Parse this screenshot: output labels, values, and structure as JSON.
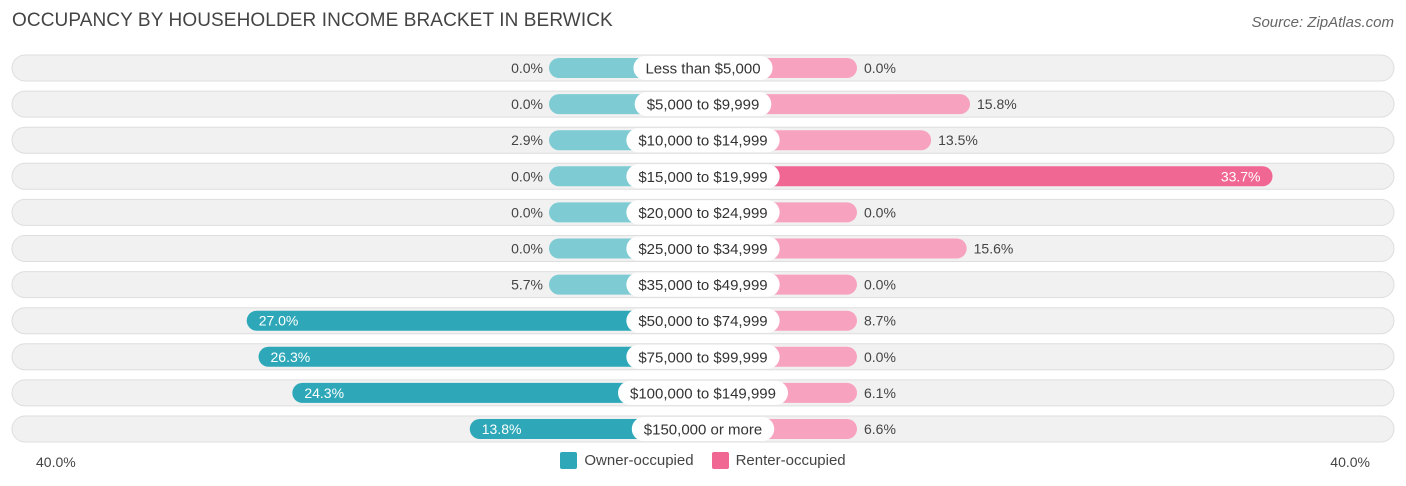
{
  "title": "OCCUPANCY BY HOUSEHOLDER INCOME BRACKET IN BERWICK",
  "source": "Source: ZipAtlas.com",
  "colors": {
    "owner": "#2ea8b8",
    "owner_light": "#7ecbd4",
    "renter": "#f06794",
    "renter_light": "#f7a3bf",
    "row_bg": "#f1f1f1",
    "row_border": "#dedede"
  },
  "chart_data": {
    "type": "bar",
    "orientation": "horizontal-diverging",
    "categories": [
      "Less than $5,000",
      "$5,000 to $9,999",
      "$10,000 to $14,999",
      "$15,000 to $19,999",
      "$20,000 to $24,999",
      "$25,000 to $34,999",
      "$35,000 to $49,999",
      "$50,000 to $74,999",
      "$75,000 to $99,999",
      "$100,000 to $149,999",
      "$150,000 or more"
    ],
    "series": [
      {
        "name": "Owner-occupied",
        "values": [
          0.0,
          0.0,
          2.9,
          0.0,
          0.0,
          0.0,
          5.7,
          27.0,
          26.3,
          24.3,
          13.8
        ],
        "labels": [
          "0.0%",
          "0.0%",
          "2.9%",
          "0.0%",
          "0.0%",
          "0.0%",
          "5.7%",
          "27.0%",
          "26.3%",
          "24.3%",
          "13.8%"
        ]
      },
      {
        "name": "Renter-occupied",
        "values": [
          0.0,
          15.8,
          13.5,
          33.7,
          0.0,
          15.6,
          0.0,
          8.7,
          0.0,
          6.1,
          6.6
        ],
        "labels": [
          "0.0%",
          "15.8%",
          "13.5%",
          "33.7%",
          "0.0%",
          "15.6%",
          "0.0%",
          "8.7%",
          "0.0%",
          "6.1%",
          "6.6%"
        ]
      }
    ],
    "xlim": [
      -40,
      40
    ],
    "axis_left_label": "40.0%",
    "axis_right_label": "40.0%",
    "legend_position": "bottom-center"
  }
}
